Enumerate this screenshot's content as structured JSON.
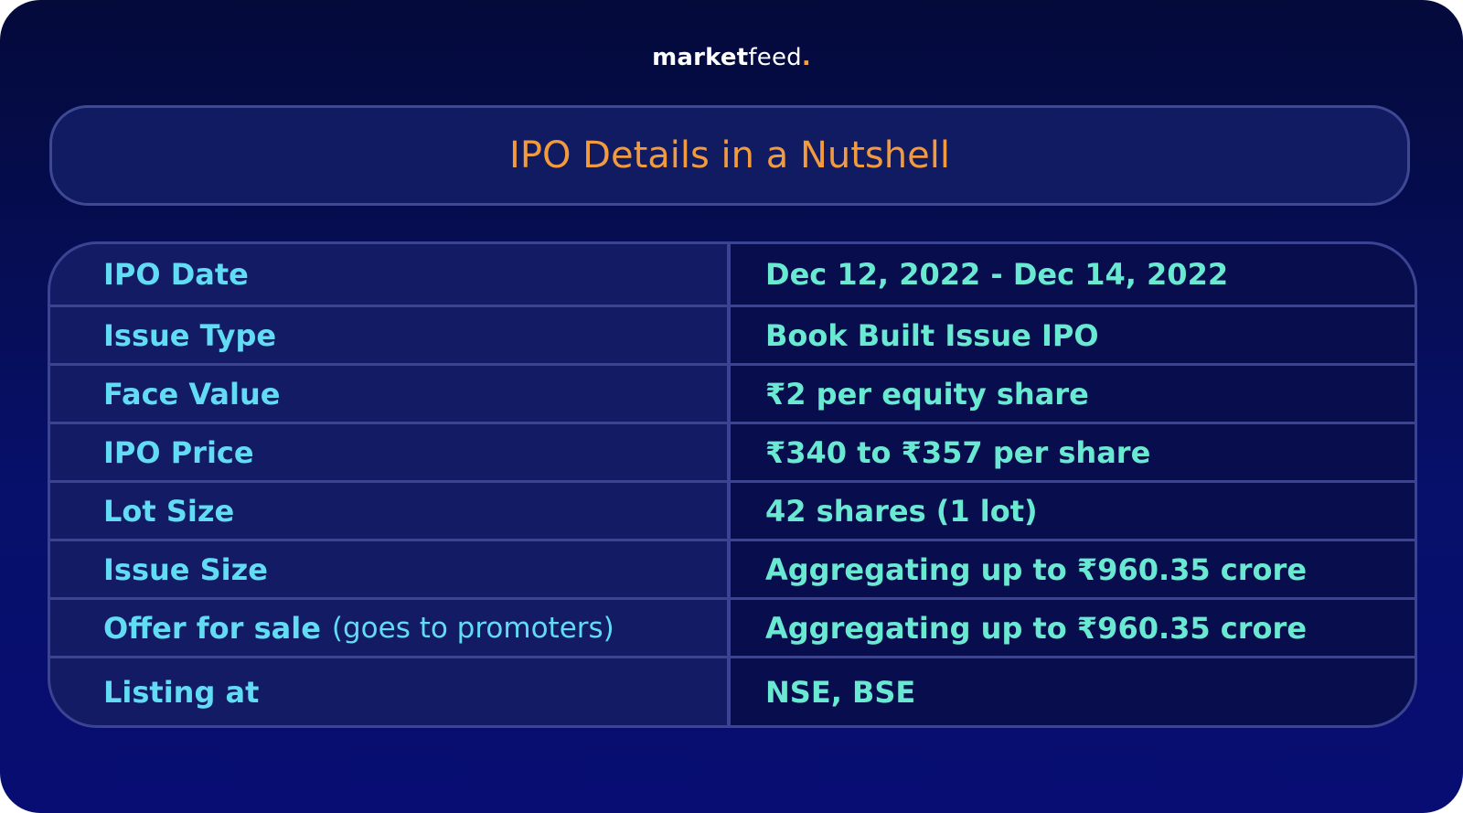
{
  "brand": {
    "bold": "market",
    "regular": "feed",
    "dot": "."
  },
  "title": "IPO Details in a Nutshell",
  "rows": [
    {
      "label": "IPO Date",
      "note": "",
      "value": "Dec 12, 2022 - Dec 14, 2022"
    },
    {
      "label": "Issue Type",
      "note": "",
      "value": "Book Built Issue IPO"
    },
    {
      "label": "Face Value",
      "note": "",
      "value": "₹2 per equity share"
    },
    {
      "label": "IPO Price",
      "note": "",
      "value": "₹340 to ₹357 per share"
    },
    {
      "label": "Lot Size",
      "note": "",
      "value": "42 shares (1 lot)"
    },
    {
      "label": "Issue Size",
      "note": "",
      "value": "Aggregating up to ₹960.35 crore"
    },
    {
      "label": "Offer for sale",
      "note": "(goes to promoters)",
      "value": "Aggregating up to ₹960.35 crore"
    },
    {
      "label": "Listing at",
      "note": "",
      "value": "NSE, BSE"
    }
  ],
  "colors": {
    "background": "#060d5a",
    "title": "#f29a3e",
    "label": "#62dcf4",
    "value": "#6ae9d2",
    "border": "#3b4492"
  }
}
